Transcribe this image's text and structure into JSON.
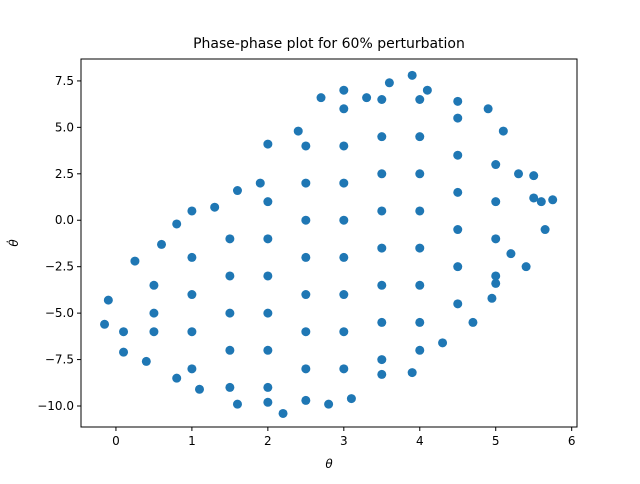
{
  "chart_data": {
    "type": "scatter",
    "title": "Phase-phase plot for 60% perturbation",
    "x_label": "θ",
    "y_label": "θ̇",
    "color": "#1f77b4",
    "xlim": [
      -0.46,
      6.07
    ],
    "ylim": [
      -11.13,
      8.68
    ],
    "xticks": [
      0,
      1,
      2,
      3,
      4,
      5,
      6
    ],
    "yticks": [
      {
        "value": -10,
        "label": "−10.0"
      },
      {
        "value": -7.5,
        "label": "−7.5"
      },
      {
        "value": -5,
        "label": "−5.0"
      },
      {
        "value": -2.5,
        "label": "−2.5"
      },
      {
        "value": 0,
        "label": "0.0"
      },
      {
        "value": 2.5,
        "label": "2.5"
      },
      {
        "value": 5,
        "label": "5.0"
      },
      {
        "value": 7.5,
        "label": "7.5"
      }
    ],
    "x": [
      -0.15,
      -0.1,
      0.1,
      0.1,
      0.25,
      0.4,
      0.6,
      0.8,
      0.8,
      1.0,
      1.1,
      1.3,
      1.6,
      1.6,
      1.9,
      2.0,
      2.0,
      2.2,
      2.4,
      2.5,
      2.7,
      2.8,
      3.0,
      3.1,
      3.3,
      3.5,
      3.6,
      3.9,
      3.9,
      4.1,
      4.3,
      4.5,
      4.7,
      4.9,
      5.0,
      5.1,
      5.3,
      5.4,
      5.5,
      5.6,
      5.65,
      5.75,
      5.5,
      5.2,
      4.95,
      0.5,
      0.5,
      0.5,
      1.0,
      1.0,
      1.0,
      1.0,
      1.5,
      1.5,
      1.5,
      1.5,
      1.5,
      2.0,
      2.0,
      2.0,
      2.0,
      2.0,
      2.0,
      2.5,
      2.5,
      2.5,
      2.5,
      2.5,
      2.5,
      2.5,
      3.0,
      3.0,
      3.0,
      3.0,
      3.0,
      3.0,
      3.0,
      3.0,
      3.5,
      3.5,
      3.5,
      3.5,
      3.5,
      3.5,
      3.5,
      3.5,
      4.0,
      4.0,
      4.0,
      4.0,
      4.0,
      4.0,
      4.0,
      4.0,
      4.5,
      4.5,
      4.5,
      4.5,
      4.5,
      4.5,
      5.0,
      5.0,
      5.0,
      5.0
    ],
    "values": [
      -5.6,
      -4.3,
      -7.1,
      -6,
      -2.2,
      -7.6,
      -1.3,
      -0.2,
      -8.5,
      0.5,
      -9.1,
      0.7,
      1.6,
      -9.9,
      2.0,
      -9.8,
      4.1,
      -10.4,
      4.8,
      -9.7,
      6.6,
      -9.9,
      7.0,
      -9.6,
      6.6,
      -8.3,
      7.4,
      7.8,
      -8.2,
      7.0,
      -6.6,
      6.4,
      -5.5,
      6.0,
      -3.4,
      4.8,
      2.5,
      -2.5,
      1.2,
      1.0,
      -0.5,
      1.1,
      2.4,
      -1.8,
      -4.2,
      -5,
      -3.5,
      -6,
      -2,
      -4,
      -6,
      -8,
      -1,
      -3,
      -5,
      -7,
      -9,
      1,
      -1,
      -3,
      -5,
      -7,
      -9,
      4,
      2,
      0,
      -2,
      -4,
      -6,
      -8,
      6,
      4,
      2,
      0,
      -2,
      -4,
      -6,
      -8,
      6.5,
      4.5,
      2.5,
      0.5,
      -1.5,
      -3.5,
      -5.5,
      -7.5,
      6.5,
      4.5,
      2.5,
      0.5,
      -1.5,
      -3.5,
      -5.5,
      -7,
      5.5,
      3.5,
      1.5,
      -0.5,
      -2.5,
      -4.5,
      3,
      1,
      -1,
      -3
    ]
  }
}
